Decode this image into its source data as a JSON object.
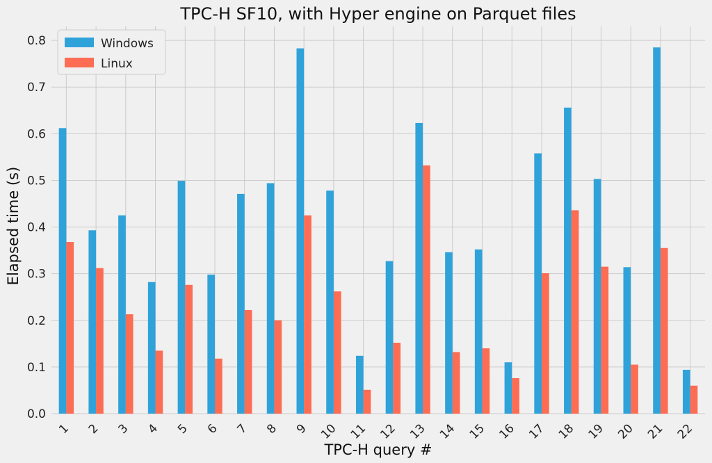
{
  "chart_data": {
    "type": "bar",
    "title": "TPC-H SF10, with Hyper engine on Parquet files",
    "xlabel": "TPC-H query #",
    "ylabel": "Elapsed time (s)",
    "ylim": [
      0,
      0.83
    ],
    "yticks": [
      "0.0",
      "0.1",
      "0.2",
      "0.3",
      "0.4",
      "0.5",
      "0.6",
      "0.7",
      "0.8"
    ],
    "grid": true,
    "legend_position": "top-left",
    "categories": [
      "1",
      "2",
      "3",
      "4",
      "5",
      "6",
      "7",
      "8",
      "9",
      "10",
      "11",
      "12",
      "13",
      "14",
      "15",
      "16",
      "17",
      "18",
      "19",
      "20",
      "21",
      "22"
    ],
    "series": [
      {
        "name": "Windows",
        "color": "#30a2da",
        "values": [
          0.612,
          0.393,
          0.425,
          0.282,
          0.499,
          0.298,
          0.471,
          0.494,
          0.783,
          0.478,
          0.124,
          0.327,
          0.623,
          0.346,
          0.352,
          0.11,
          0.558,
          0.656,
          0.503,
          0.314,
          0.785,
          0.094
        ]
      },
      {
        "name": "Linux",
        "color": "#fc6d53",
        "values": [
          0.368,
          0.312,
          0.213,
          0.135,
          0.276,
          0.118,
          0.222,
          0.2,
          0.425,
          0.262,
          0.051,
          0.152,
          0.532,
          0.132,
          0.14,
          0.076,
          0.301,
          0.436,
          0.315,
          0.105,
          0.355,
          0.06
        ]
      }
    ]
  }
}
